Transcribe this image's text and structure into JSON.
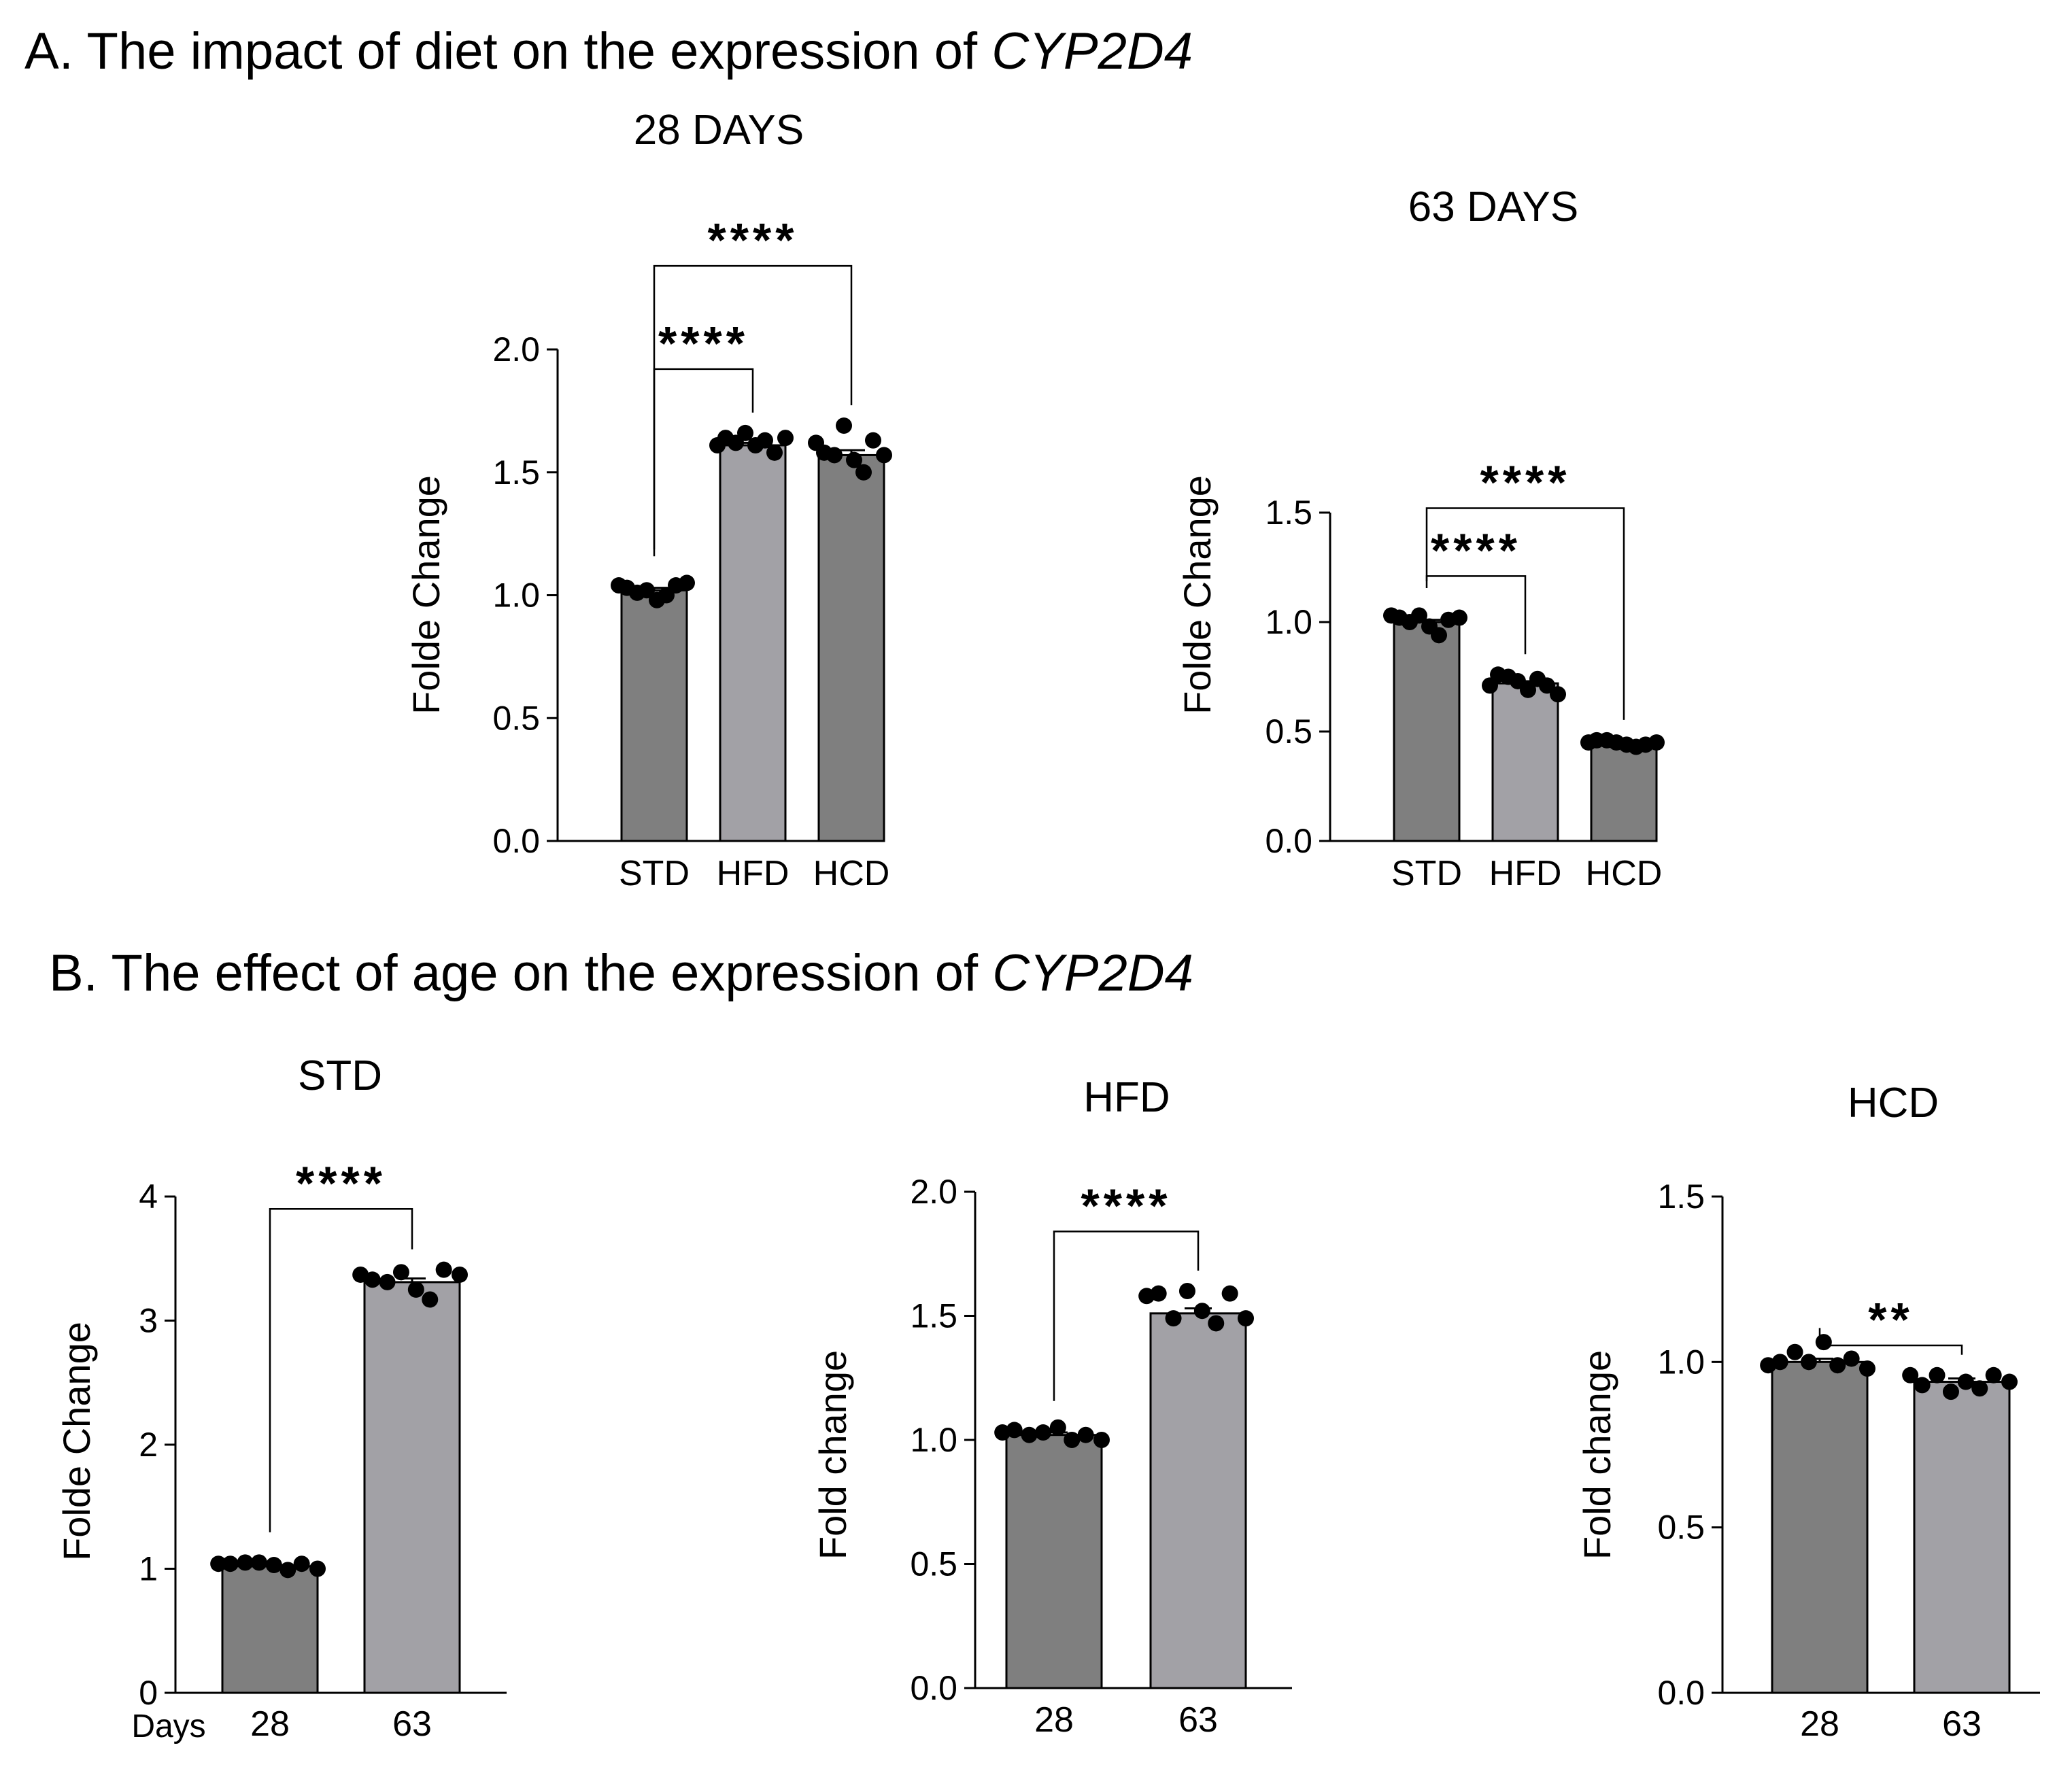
{
  "panel_a": {
    "title": "A. The impact of diet on the expression of ",
    "gene": "CYP2D4"
  },
  "panel_b": {
    "title": "B. The effect of age on the expression of ",
    "gene": "CYP2D4"
  },
  "colors": {
    "dark_bar": "#7f7f7f",
    "light_bar": "#a2a1a6",
    "axis": "#000000",
    "dot": "#000000"
  },
  "chart_data": [
    {
      "id": "a-28days",
      "type": "bar",
      "title": "28 DAYS",
      "ylabel": "Folde Change",
      "xlabel": "",
      "categories": [
        "STD",
        "HFD",
        "HCD"
      ],
      "values": [
        1.02,
        1.61,
        1.57
      ],
      "sem": [
        0.01,
        0.01,
        0.02
      ],
      "fills": [
        "dark",
        "light",
        "dark"
      ],
      "points": [
        [
          1.04,
          1.03,
          1.01,
          1.02,
          0.98,
          1.0,
          1.04,
          1.05
        ],
        [
          1.61,
          1.64,
          1.62,
          1.66,
          1.61,
          1.63,
          1.58,
          1.64
        ],
        [
          1.62,
          1.58,
          1.57,
          1.69,
          1.55,
          1.5,
          1.63,
          1.57
        ]
      ],
      "ylim": [
        0,
        2.0
      ],
      "yticks": [
        "0.0",
        "0.5",
        "1.0",
        "1.5",
        "2.0"
      ],
      "significance": [
        {
          "from": 0,
          "to": 1,
          "label": "****",
          "y": 1.92
        },
        {
          "from": 0,
          "to": 2,
          "label": "****",
          "y": 2.34
        }
      ]
    },
    {
      "id": "a-63days",
      "type": "bar",
      "title": "63 DAYS",
      "ylabel": "Folde Change",
      "xlabel": "",
      "categories": [
        "STD",
        "HFD",
        "HCD"
      ],
      "values": [
        1.0,
        0.72,
        0.45
      ],
      "sem": [
        0.01,
        0.01,
        0.005
      ],
      "fills": [
        "dark",
        "light",
        "dark"
      ],
      "points": [
        [
          1.03,
          1.02,
          1.0,
          1.03,
          0.98,
          0.94,
          1.01,
          1.02
        ],
        [
          0.71,
          0.76,
          0.75,
          0.73,
          0.69,
          0.74,
          0.71,
          0.67
        ],
        [
          0.45,
          0.46,
          0.46,
          0.45,
          0.44,
          0.43,
          0.44,
          0.45
        ]
      ],
      "ylim": [
        0,
        1.5
      ],
      "yticks": [
        "0.0",
        "0.5",
        "1.0",
        "1.5"
      ],
      "significance": [
        {
          "from": 0,
          "to": 1,
          "label": "****",
          "y": 1.21
        },
        {
          "from": 0,
          "to": 2,
          "label": "****",
          "y": 1.52
        }
      ]
    },
    {
      "id": "b-std",
      "type": "bar",
      "title": "STD",
      "ylabel": "Folde Change",
      "xlabel": "Days",
      "categories": [
        "28",
        "63"
      ],
      "values": [
        1.02,
        3.31
      ],
      "sem": [
        0.01,
        0.03
      ],
      "fills": [
        "dark",
        "light"
      ],
      "points": [
        [
          1.04,
          1.04,
          1.05,
          1.05,
          1.03,
          0.99,
          1.04,
          1.0
        ],
        [
          3.37,
          3.33,
          3.31,
          3.39,
          3.25,
          3.17,
          3.41,
          3.37
        ]
      ],
      "ylim": [
        0,
        4
      ],
      "yticks": [
        "0",
        "1",
        "2",
        "3",
        "4"
      ],
      "significance": [
        {
          "from": 0,
          "to": 1,
          "label": "****",
          "y": 3.9
        }
      ]
    },
    {
      "id": "b-hfd",
      "type": "bar",
      "title": "HFD",
      "ylabel": "Fold change",
      "xlabel": "",
      "categories": [
        "28",
        "63"
      ],
      "values": [
        1.02,
        1.51
      ],
      "sem": [
        0.01,
        0.02
      ],
      "fills": [
        "dark",
        "light"
      ],
      "points": [
        [
          1.03,
          1.04,
          1.02,
          1.03,
          1.05,
          1.0,
          1.02,
          1.0
        ],
        [
          1.58,
          1.59,
          1.49,
          1.6,
          1.52,
          1.47,
          1.59,
          1.49
        ]
      ],
      "ylim": [
        0,
        2.0
      ],
      "yticks": [
        "0.0",
        "0.5",
        "1.0",
        "1.5",
        "2.0"
      ],
      "significance": [
        {
          "from": 0,
          "to": 1,
          "label": "****",
          "y": 1.84
        }
      ]
    },
    {
      "id": "b-hcd",
      "type": "bar",
      "title": "HCD",
      "ylabel": "Fold change",
      "xlabel": "",
      "categories": [
        "28",
        "63"
      ],
      "values": [
        1.0,
        0.94
      ],
      "sem": [
        0.01,
        0.01
      ],
      "fills": [
        "dark",
        "light"
      ],
      "points": [
        [
          0.99,
          1.0,
          1.03,
          1.0,
          1.06,
          0.99,
          1.01,
          0.98
        ],
        [
          0.96,
          0.93,
          0.96,
          0.91,
          0.94,
          0.92,
          0.96,
          0.94
        ]
      ],
      "ylim": [
        0,
        1.5
      ],
      "yticks": [
        "0.0",
        "0.5",
        "1.0",
        "1.5"
      ],
      "significance": [
        {
          "from": 0,
          "to": 1,
          "label": "**",
          "y": 1.05
        }
      ]
    }
  ]
}
